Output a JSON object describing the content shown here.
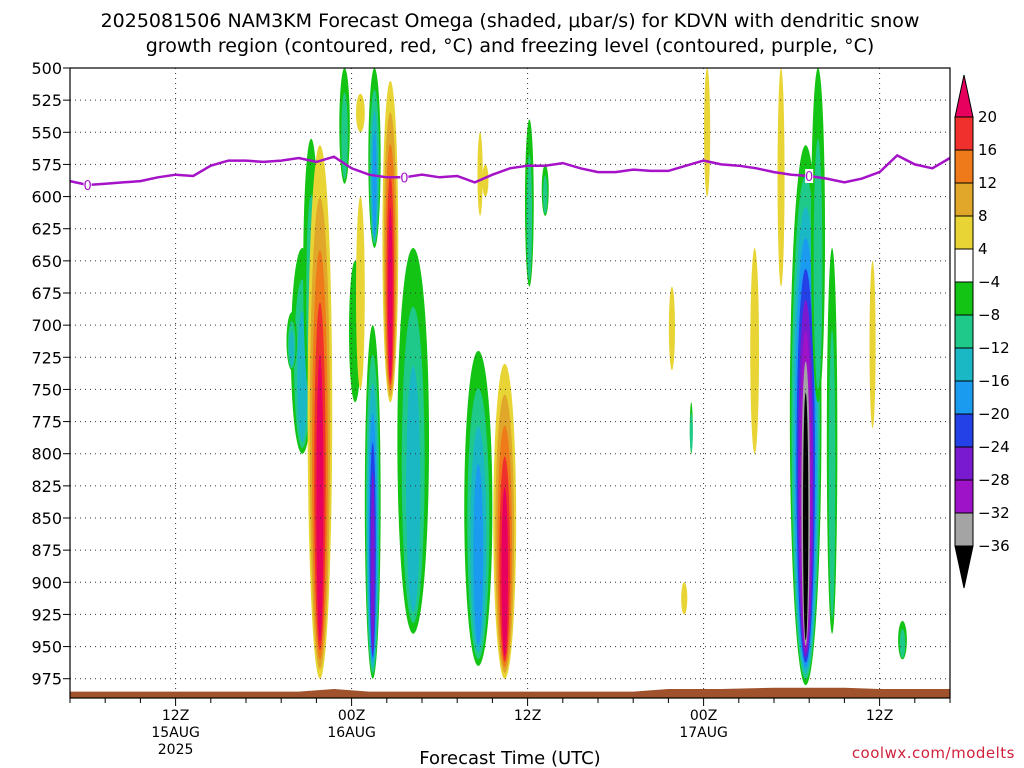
{
  "chart_data": {
    "type": "heatmap",
    "title_line1": "2025081506 NAM3KM Forecast Omega (shaded, μbar/s) for KDVN with dendritic snow",
    "title_line2": "growth region (contoured, red, °C) and freezing level (contoured, purple, °C)",
    "xlabel": "Forecast Time (UTC)",
    "credit": "coolwx.com/modelts",
    "y_axis": {
      "unit": "mb",
      "reversed": true,
      "range": [
        500,
        990
      ],
      "ticks": [
        500,
        525,
        550,
        575,
        600,
        625,
        650,
        675,
        700,
        725,
        750,
        775,
        800,
        825,
        850,
        875,
        900,
        925,
        950,
        975
      ]
    },
    "x_axis": {
      "range_hours": [
        0,
        50
      ],
      "ticks": [
        {
          "hour": 6,
          "line1": "12Z",
          "line2": "15AUG",
          "line3": "2025"
        },
        {
          "hour": 16,
          "line1": "00Z",
          "line2": "16AUG",
          "line3": ""
        },
        {
          "hour": 26,
          "line1": "12Z",
          "line2": "",
          "line3": ""
        },
        {
          "hour": 36,
          "line1": "00Z",
          "line2": "17AUG",
          "line3": ""
        },
        {
          "hour": 46,
          "line1": "12Z",
          "line2": "",
          "line3": ""
        }
      ]
    },
    "grid": true,
    "colorbar": {
      "labels": [
        "20",
        "16",
        "12",
        "8",
        "4",
        "−4",
        "−8",
        "−12",
        "−16",
        "−20",
        "−24",
        "−28",
        "−32",
        "−36"
      ],
      "colors": [
        "#e8005f",
        "#f0302c",
        "#ef7a1a",
        "#e0a72a",
        "#e8d535",
        "#ffffff",
        "#14c414",
        "#1fc98a",
        "#1ab8c4",
        "#1a9bf0",
        "#2441e8",
        "#7a1ad0",
        "#9e12c8",
        "#a4a4a4",
        "#000000"
      ],
      "position": "right"
    },
    "freezing_level": {
      "label": "0",
      "hours": [
        0,
        1,
        2,
        3,
        4,
        5,
        6,
        7,
        8,
        9,
        10,
        11,
        12,
        13,
        14,
        15,
        16,
        17,
        18,
        19,
        20,
        21,
        22,
        23,
        24,
        25,
        26,
        27,
        28,
        29,
        30,
        31,
        32,
        33,
        34,
        35,
        36,
        37,
        38,
        39,
        40,
        41,
        42,
        43,
        44,
        45,
        46,
        47,
        48,
        49,
        50
      ],
      "pressure": [
        588,
        591,
        590,
        589,
        588,
        585,
        583,
        584,
        576,
        572,
        572,
        573,
        572,
        570,
        573,
        569,
        578,
        583,
        585,
        585,
        583,
        585,
        584,
        589,
        583,
        578,
        576,
        576,
        574,
        578,
        581,
        581,
        579,
        580,
        580,
        576,
        572,
        575,
        576,
        578,
        581,
        583,
        584,
        586,
        589,
        586,
        581,
        568,
        575,
        578,
        570
      ]
    },
    "surface_fill_color": "#a0522d",
    "omega_features": [
      {
        "hour": 13.2,
        "top": 640,
        "bottom": 800,
        "width": 1.3,
        "peak": -14
      },
      {
        "hour": 12.6,
        "top": 690,
        "bottom": 735,
        "width": 0.6,
        "peak": -14
      },
      {
        "hour": 13.7,
        "top": 555,
        "bottom": 760,
        "width": 0.9,
        "peak": -8
      },
      {
        "hour": 14.2,
        "top": 560,
        "bottom": 975,
        "width": 1.4,
        "peak": 20
      },
      {
        "hour": 15.6,
        "top": 500,
        "bottom": 590,
        "width": 0.6,
        "peak": -8
      },
      {
        "hour": 16.2,
        "top": 650,
        "bottom": 760,
        "width": 0.7,
        "peak": -6
      },
      {
        "hour": 16.5,
        "top": 520,
        "bottom": 550,
        "width": 0.5,
        "peak": 6
      },
      {
        "hour": 17.3,
        "top": 500,
        "bottom": 640,
        "width": 0.7,
        "peak": -18
      },
      {
        "hour": 17.2,
        "top": 700,
        "bottom": 975,
        "width": 0.9,
        "peak": -26
      },
      {
        "hour": 16.5,
        "top": 600,
        "bottom": 750,
        "width": 0.5,
        "peak": 6
      },
      {
        "hour": 18.2,
        "top": 510,
        "bottom": 760,
        "width": 0.9,
        "peak": 20
      },
      {
        "hour": 19.5,
        "top": 640,
        "bottom": 940,
        "width": 1.8,
        "peak": -12
      },
      {
        "hour": 23.2,
        "top": 720,
        "bottom": 965,
        "width": 1.6,
        "peak": -16
      },
      {
        "hour": 24.7,
        "top": 730,
        "bottom": 975,
        "width": 1.3,
        "peak": 20
      },
      {
        "hour": 23.6,
        "top": 575,
        "bottom": 600,
        "width": 0.35,
        "peak": 5
      },
      {
        "hour": 23.3,
        "top": 550,
        "bottom": 615,
        "width": 0.3,
        "peak": 5
      },
      {
        "hour": 26.1,
        "top": 540,
        "bottom": 670,
        "width": 0.5,
        "peak": -8
      },
      {
        "hour": 27.0,
        "top": 575,
        "bottom": 615,
        "width": 0.4,
        "peak": -8
      },
      {
        "hour": 34.2,
        "top": 670,
        "bottom": 735,
        "width": 0.35,
        "peak": 5
      },
      {
        "hour": 34.9,
        "top": 900,
        "bottom": 925,
        "width": 0.35,
        "peak": 5
      },
      {
        "hour": 35.3,
        "top": 760,
        "bottom": 800,
        "width": 0.15,
        "peak": -8
      },
      {
        "hour": 36.2,
        "top": 500,
        "bottom": 600,
        "width": 0.35,
        "peak": 5
      },
      {
        "hour": 38.9,
        "top": 640,
        "bottom": 800,
        "width": 0.5,
        "peak": 5
      },
      {
        "hour": 40.4,
        "top": 500,
        "bottom": 670,
        "width": 0.4,
        "peak": 5
      },
      {
        "hour": 41.8,
        "top": 560,
        "bottom": 980,
        "width": 1.8,
        "peak": -36
      },
      {
        "hour": 42.5,
        "top": 500,
        "bottom": 760,
        "width": 0.8,
        "peak": -8
      },
      {
        "hour": 45.6,
        "top": 650,
        "bottom": 780,
        "width": 0.35,
        "peak": 5
      },
      {
        "hour": 47.3,
        "top": 930,
        "bottom": 960,
        "width": 0.5,
        "peak": -8
      },
      {
        "hour": 43.3,
        "top": 640,
        "bottom": 940,
        "width": 0.6,
        "peak": -8
      }
    ]
  }
}
